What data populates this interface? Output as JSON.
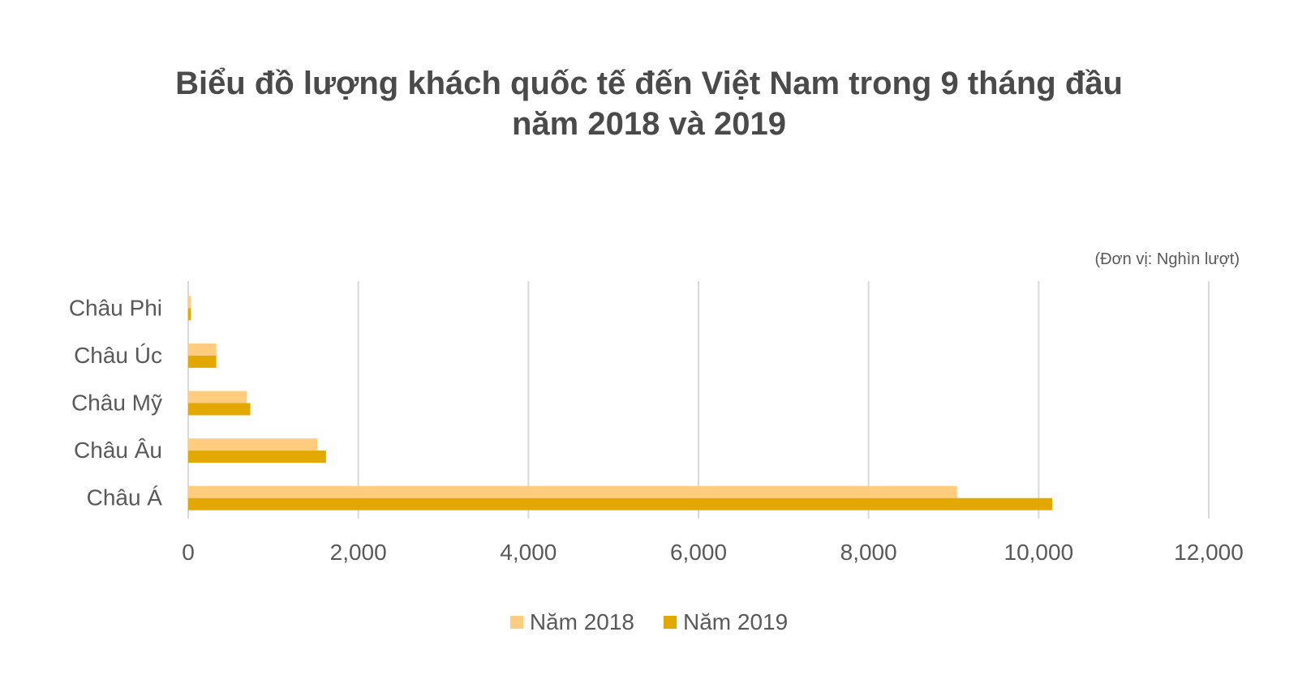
{
  "title_line1": "Biểu đồ lượng khách quốc tế đến Việt Nam trong 9 tháng đầu",
  "title_line2": "năm 2018 và 2019",
  "unit_note": "(Đơn vị: Nghìn lượt)",
  "colors": {
    "2018": "#ffcc80",
    "2019": "#e3a800",
    "grid": "#d9d9d9",
    "text": "#595959"
  },
  "chart_data": {
    "type": "bar",
    "orientation": "horizontal",
    "categories": [
      "Châu Phi",
      "Châu Úc",
      "Châu Mỹ",
      "Châu Âu",
      "Châu Á"
    ],
    "series": [
      {
        "name": "Năm 2018",
        "values": [
          30,
          330,
          690,
          1520,
          9040
        ]
      },
      {
        "name": "Năm 2019",
        "values": [
          30,
          330,
          730,
          1620,
          10160
        ]
      }
    ],
    "xticks": [
      "0",
      "2,000",
      "4,000",
      "6,000",
      "8,000",
      "10,000",
      "12,000"
    ],
    "xlim": [
      0,
      12000
    ],
    "grid": true,
    "legend_position": "bottom"
  }
}
